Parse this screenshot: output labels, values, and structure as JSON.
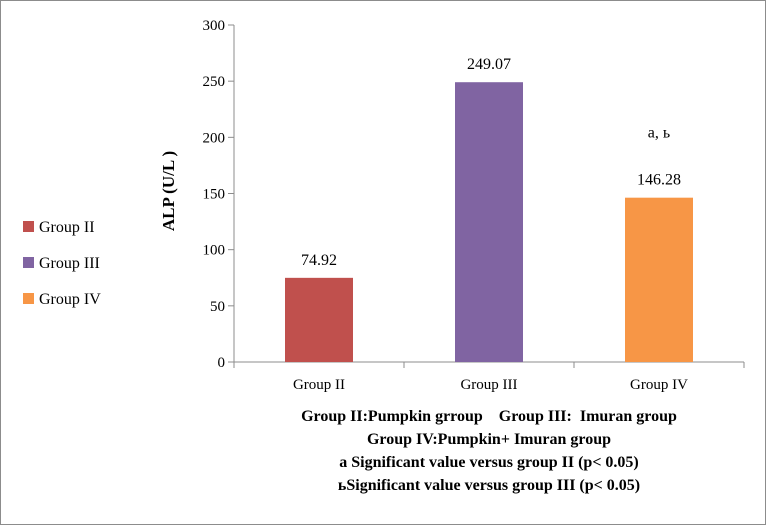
{
  "chart_data": {
    "type": "bar",
    "categories": [
      "Group II",
      "Group III",
      "Group IV"
    ],
    "values": [
      74.92,
      249.07,
      146.28
    ],
    "value_labels": [
      "74.92",
      "249.07",
      "146.28"
    ],
    "colors": [
      "#c0504d",
      "#8064a2",
      "#f79646"
    ],
    "ylabel": "ALP (U/L )",
    "ylim": [
      0,
      300
    ],
    "yticks": [
      0,
      50,
      100,
      150,
      200,
      250,
      300
    ],
    "grid": false,
    "legend": {
      "placement": "left",
      "entries": [
        "Group II",
        "Group III",
        "Group IV"
      ]
    },
    "annotations": [
      {
        "category": "Group IV",
        "text": "a, ь"
      }
    ],
    "notes": [
      "Group II:Pumpkin grroup    Group III:  Imuran group",
      "Group IV:Pumpkin+ Imuran group",
      "a Significant value versus group II (p< 0.05)",
      "ьSignificant value versus group III (p< 0.05)"
    ]
  }
}
